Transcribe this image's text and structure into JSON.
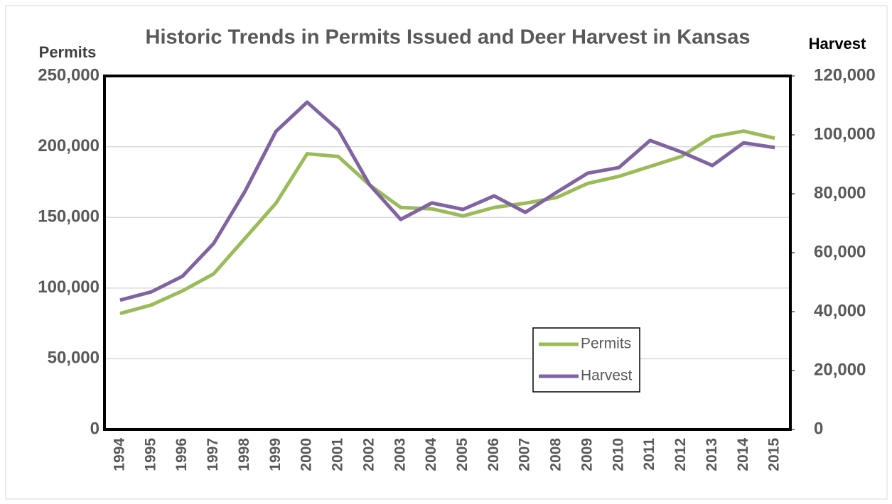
{
  "chart_data": {
    "type": "line",
    "title": "Historic Trends in Permits Issued and Deer Harvest in Kansas",
    "y_label": "Permits",
    "y2_label": "Harvest",
    "categories": [
      "1994",
      "1995",
      "1996",
      "1997",
      "1998",
      "1999",
      "2000",
      "2001",
      "2002",
      "2003",
      "2004",
      "2005",
      "2006",
      "2007",
      "2008",
      "2009",
      "2010",
      "2011",
      "2012",
      "2013",
      "2014",
      "2015"
    ],
    "series": [
      {
        "name": "Permits",
        "color": "#9bbb59",
        "values": [
          82000,
          88000,
          98000,
          110000,
          135000,
          160000,
          195000,
          193000,
          173000,
          157000,
          156000,
          151000,
          157000,
          160000,
          164000,
          174000,
          179000,
          186000,
          193000,
          207000,
          211000,
          206000
        ]
      },
      {
        "name": "Harvest",
        "color": "#8064a2",
        "axis": "y2",
        "values": [
          43900,
          46700,
          52000,
          63100,
          80700,
          101200,
          111100,
          101700,
          83100,
          71300,
          76900,
          74700,
          79300,
          73700,
          80500,
          87000,
          88900,
          98100,
          94200,
          89600,
          97300,
          95700
        ]
      }
    ],
    "ylim": [
      0,
      250000
    ],
    "yticks": [
      0,
      {
        "value": 50000,
        "label": "50,000"
      },
      {
        "value": 100000,
        "label": "100,000"
      },
      {
        "value": 150000,
        "label": "150,000"
      },
      {
        "value": 200000,
        "label": "200,000"
      },
      {
        "value": 250000,
        "label": "250,000"
      }
    ],
    "y2lim": [
      0,
      120000
    ],
    "y2ticks": [
      0,
      {
        "value": 20000,
        "label": "20,000"
      },
      {
        "value": 40000,
        "label": "40,000"
      },
      {
        "value": 60000,
        "label": "60,000"
      },
      {
        "value": 80000,
        "label": "80,000"
      },
      {
        "value": 100000,
        "label": "100,000"
      },
      {
        "value": 120000,
        "label": "120,000"
      }
    ],
    "grid": true,
    "legend": "lower-right"
  }
}
